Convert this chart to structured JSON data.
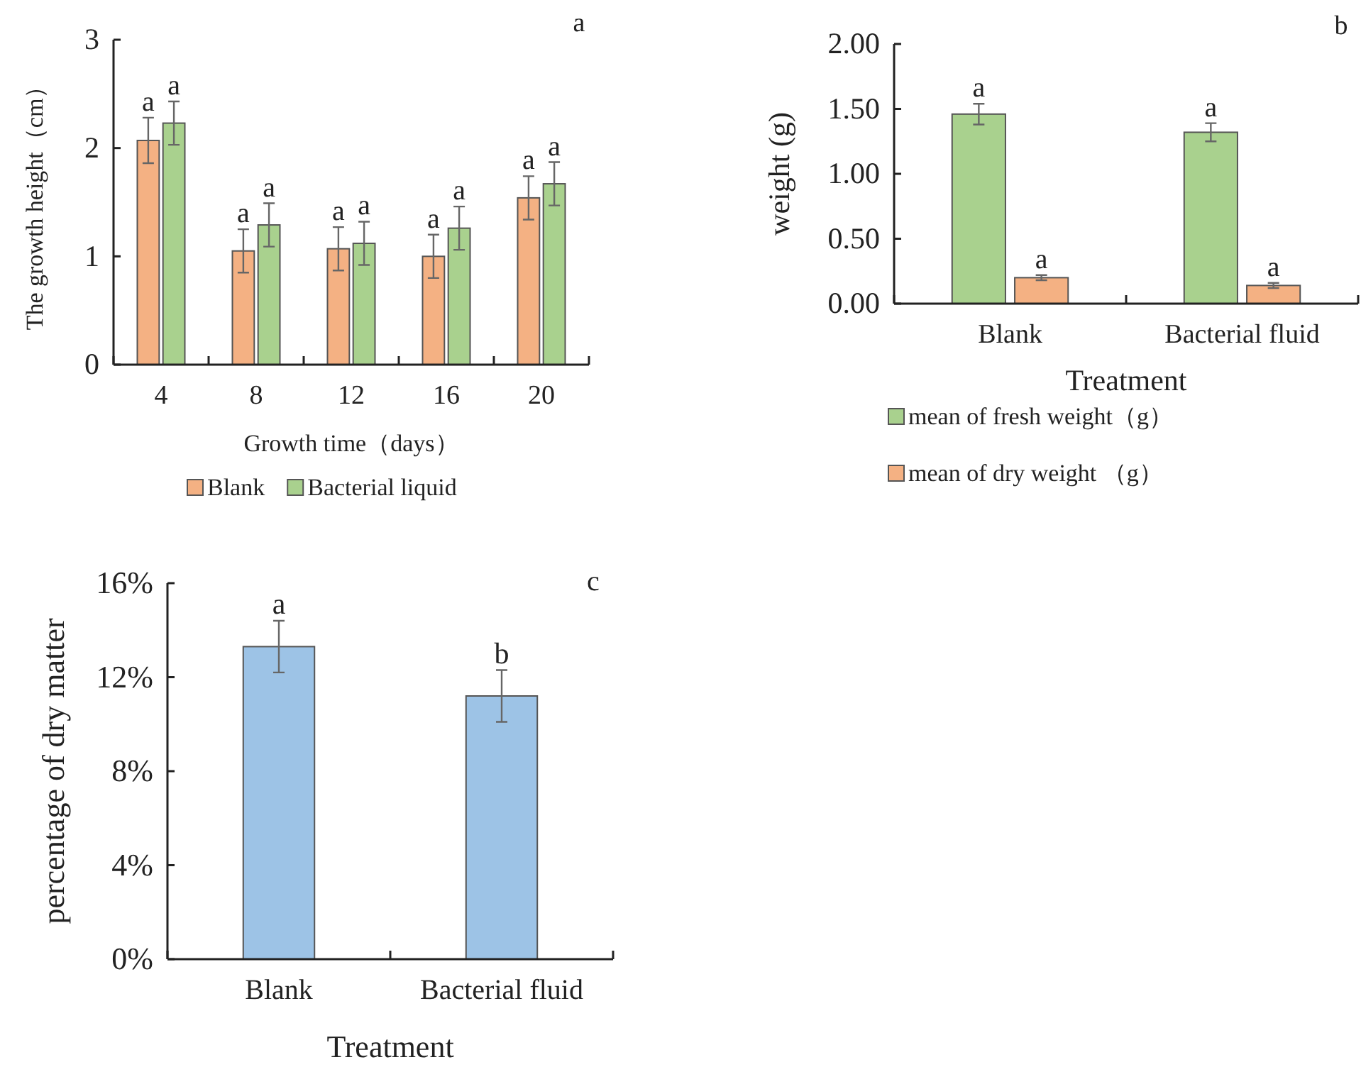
{
  "chart_data": [
    {
      "type": "bar",
      "title": "a",
      "xlabel": "Growth time（days）",
      "ylabel": "The growth height（cm）",
      "categories": [
        "4",
        "8",
        "12",
        "16",
        "20"
      ],
      "series": [
        {
          "name": "Blank",
          "color": "#f4b183",
          "values": [
            2.07,
            1.05,
            1.07,
            1.0,
            1.54
          ],
          "errors": [
            0.21,
            0.2,
            0.2,
            0.2,
            0.2
          ],
          "value_labels": [
            "a",
            "a",
            "a",
            "a",
            "a"
          ]
        },
        {
          "name": "Bacterial liquid",
          "color": "#a9d18e",
          "values": [
            2.23,
            1.29,
            1.12,
            1.26,
            1.67
          ],
          "errors": [
            0.2,
            0.2,
            0.2,
            0.2,
            0.2
          ],
          "value_labels": [
            "a",
            "a",
            "a",
            "a",
            "a"
          ]
        }
      ],
      "ylim": [
        0,
        3
      ],
      "yticks": [
        0,
        1,
        2,
        3
      ],
      "grid": false,
      "legend": "bottom"
    },
    {
      "type": "bar",
      "title": "b",
      "xlabel": "Treatment",
      "ylabel": "weight (g)",
      "categories": [
        "Blank",
        "Bacterial fluid"
      ],
      "series": [
        {
          "name": "mean of fresh weight（g）",
          "color": "#a9d18e",
          "values": [
            1.46,
            1.32
          ],
          "errors": [
            0.08,
            0.07
          ],
          "value_labels": [
            "a",
            "a"
          ]
        },
        {
          "name": "mean of dry weight （g）",
          "color": "#f4b183",
          "values": [
            0.2,
            0.14
          ],
          "errors": [
            0.02,
            0.02
          ],
          "value_labels": [
            "a",
            "a"
          ]
        }
      ],
      "ylim": [
        0,
        2
      ],
      "yticks": [
        {
          "value": 0,
          "label": "0.00"
        },
        {
          "value": 0.5,
          "label": "0.50"
        },
        {
          "value": 1,
          "label": "1.00"
        },
        {
          "value": 1.5,
          "label": "1.50"
        },
        {
          "value": 2,
          "label": "2.00"
        }
      ],
      "grid": false,
      "legend": "bottom"
    },
    {
      "type": "bar",
      "title": "c",
      "xlabel": "Treatment",
      "ylabel": "percentage of dry matter",
      "categories": [
        "Blank",
        "Bacterial fluid"
      ],
      "values": [
        13.3,
        11.2
      ],
      "color": "#9dc3e6",
      "errors": [
        1.1,
        1.1
      ],
      "value_labels": [
        "a",
        "b"
      ],
      "ylim": [
        0,
        16
      ],
      "yticks": [
        {
          "value": 0,
          "label": "0%"
        },
        {
          "value": 4,
          "label": "4%"
        },
        {
          "value": 8,
          "label": "8%"
        },
        {
          "value": 12,
          "label": "12%"
        },
        {
          "value": 16,
          "label": "16%"
        }
      ],
      "grid": false,
      "legend": false
    }
  ]
}
